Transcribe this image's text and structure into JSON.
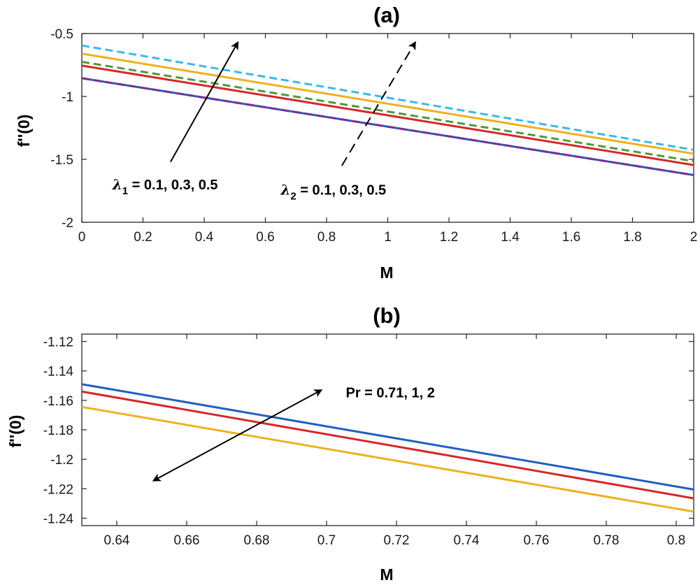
{
  "chart_data": [
    {
      "id": "a",
      "type": "line",
      "title": "(a)",
      "xlabel": "M",
      "ylabel": "f''(0)",
      "xlim": [
        0,
        2
      ],
      "ylim": [
        -2,
        -0.5
      ],
      "xticks": [
        0,
        0.2,
        0.4,
        0.6,
        0.8,
        1,
        1.2,
        1.4,
        1.6,
        1.8,
        2
      ],
      "yticks": [
        -2,
        -1.5,
        -1,
        -0.5
      ],
      "xtick_labels": [
        "0",
        "0.2",
        "0.4",
        "0.6",
        "0.8",
        "1",
        "1.2",
        "1.4",
        "1.6",
        "1.8",
        "2"
      ],
      "ytick_labels": [
        "-2",
        "-1.5",
        "-1",
        "-0.5"
      ],
      "series": [
        {
          "name": "solid blue",
          "color": "#1f5fbf",
          "dash": "solid",
          "x": [
            0,
            2
          ],
          "y": [
            -0.855,
            -1.625
          ]
        },
        {
          "name": "dashed purple",
          "color": "#7e2f8e",
          "dash": "dashed",
          "x": [
            0,
            2
          ],
          "y": [
            -0.855,
            -1.625
          ]
        },
        {
          "name": "solid red",
          "color": "#d62728",
          "dash": "solid",
          "x": [
            0,
            2
          ],
          "y": [
            -0.755,
            -1.545
          ]
        },
        {
          "name": "dashed green",
          "color": "#4f9a3a",
          "dash": "dashed",
          "x": [
            0,
            2
          ],
          "y": [
            -0.725,
            -1.515
          ]
        },
        {
          "name": "solid orange",
          "color": "#edb120",
          "dash": "solid",
          "x": [
            0,
            2
          ],
          "y": [
            -0.66,
            -1.455
          ]
        },
        {
          "name": "dashed cyan",
          "color": "#3db8e8",
          "dash": "dashed",
          "x": [
            0,
            2
          ],
          "y": [
            -0.595,
            -1.425
          ]
        }
      ],
      "annotations": [
        {
          "symbol": "λ",
          "subscript": "1",
          "text": " = 0.1, 0.3, 0.5",
          "arrow": "solid",
          "text_at": [
            0.1,
            -1.74
          ],
          "arrow_from": [
            0.29,
            -1.52
          ],
          "arrow_to": [
            0.51,
            -0.57
          ]
        },
        {
          "symbol": "λ",
          "subscript": "2",
          "text": " = 0.1, 0.3, 0.5",
          "arrow": "dashed",
          "text_at": [
            0.65,
            -1.78
          ],
          "arrow_from": [
            0.85,
            -1.55
          ],
          "arrow_to": [
            1.09,
            -0.57
          ]
        }
      ]
    },
    {
      "id": "b",
      "type": "line",
      "title": "(b)",
      "xlabel": "M",
      "ylabel": "f''(0)",
      "xlim": [
        0.63,
        0.805
      ],
      "ylim": [
        -1.245,
        -1.115
      ],
      "xticks": [
        0.64,
        0.66,
        0.68,
        0.7,
        0.72,
        0.74,
        0.76,
        0.78,
        0.8
      ],
      "yticks": [
        -1.24,
        -1.22,
        -1.2,
        -1.18,
        -1.16,
        -1.14,
        -1.12
      ],
      "xtick_labels": [
        "0.64",
        "0.66",
        "0.68",
        "0.7",
        "0.72",
        "0.74",
        "0.76",
        "0.78",
        "0.8"
      ],
      "ytick_labels": [
        "-1.24",
        "-1.22",
        "-1.2",
        "-1.18",
        "-1.16",
        "-1.14",
        "-1.12"
      ],
      "series": [
        {
          "name": "Pr = 0.71",
          "color": "#1f5fbf",
          "dash": "solid",
          "x": [
            0.63,
            0.805
          ],
          "y": [
            -1.149,
            -1.2205
          ]
        },
        {
          "name": "Pr = 1",
          "color": "#d62728",
          "dash": "solid",
          "x": [
            0.63,
            0.805
          ],
          "y": [
            -1.154,
            -1.2265
          ]
        },
        {
          "name": "Pr = 2",
          "color": "#edb120",
          "dash": "solid",
          "x": [
            0.63,
            0.805
          ],
          "y": [
            -1.1645,
            -1.2355
          ]
        }
      ],
      "annotations": [
        {
          "symbol": "",
          "subscript": "",
          "text": "Pr = 0.71, 1, 2",
          "arrow": "double",
          "text_at": [
            0.7055,
            -1.158
          ],
          "arrow_from": [
            0.6985,
            -1.153
          ],
          "arrow_to": [
            0.6505,
            -1.2145
          ]
        }
      ]
    }
  ]
}
